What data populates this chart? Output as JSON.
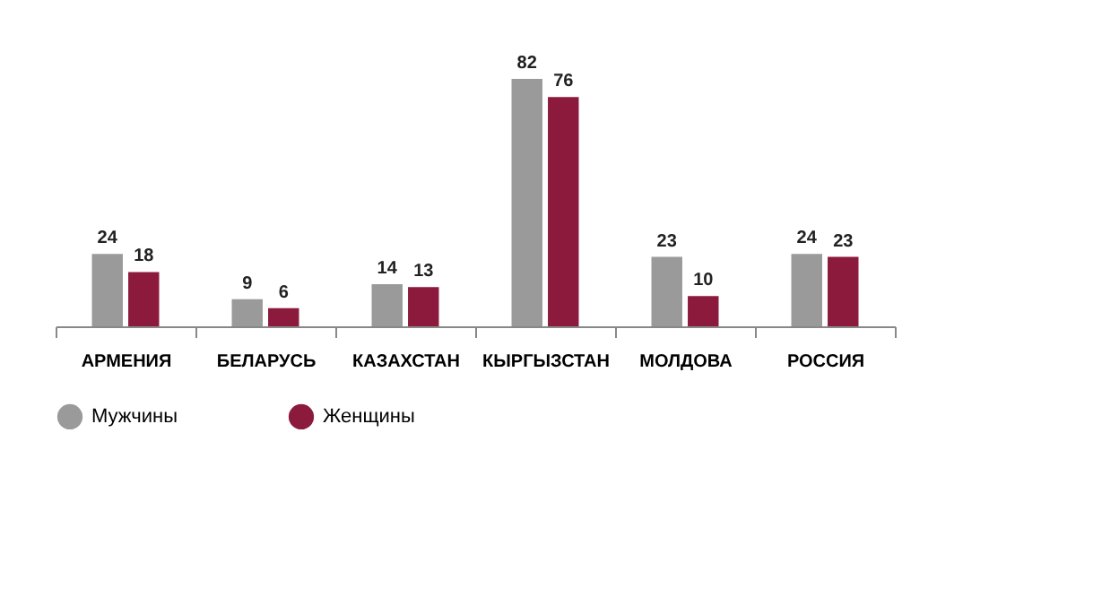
{
  "chart_data": {
    "type": "bar",
    "categories": [
      "АРМЕНИЯ",
      "БЕЛАРУСЬ",
      "КАЗАХСТАН",
      "КЫРГЫЗСТАН",
      "МОЛДОВА",
      "РОССИЯ"
    ],
    "series": [
      {
        "name": "Мужчины",
        "color": "#9a9a9a",
        "values": [
          24,
          9,
          14,
          82,
          23,
          24
        ]
      },
      {
        "name": "Женщины",
        "color": "#8c1a3c",
        "values": [
          18,
          6,
          13,
          76,
          10,
          23
        ]
      }
    ],
    "data_labels": true,
    "legend": "bottom",
    "grid": false
  }
}
